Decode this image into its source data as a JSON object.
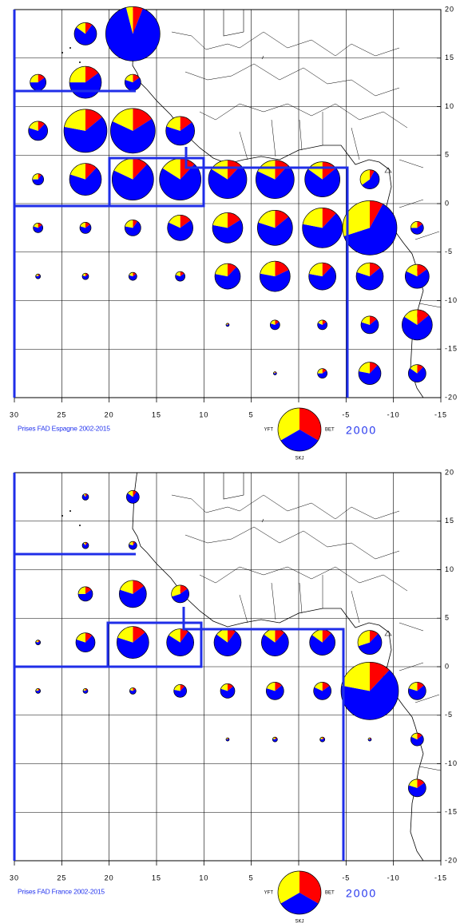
{
  "chart_data": [
    {
      "type": "pie-map",
      "title": "Prises FAD Espagne 2002-2015",
      "legend_size": 2000,
      "xlim": [
        30,
        -15
      ],
      "ylim": [
        -20,
        20
      ],
      "xticks": [
        30,
        25,
        20,
        15,
        10,
        5,
        0,
        -5,
        -10,
        -15
      ],
      "yticks": [
        20,
        15,
        10,
        5,
        0,
        -5,
        -10,
        -15,
        -20
      ],
      "series": [
        {
          "name": "YFT",
          "color": "#ffff00"
        },
        {
          "name": "BET",
          "color": "#ff0000"
        },
        {
          "name": "SKJ",
          "color": "#0000ff"
        }
      ],
      "pies": [
        {
          "lon": 22.5,
          "lat": 17.5,
          "size": 537,
          "values": [
            15,
            10,
            75
          ]
        },
        {
          "lon": 17.5,
          "lat": 17.5,
          "size": 3167,
          "values": [
            4,
            6,
            90
          ]
        },
        {
          "lon": 27.5,
          "lat": 12.5,
          "size": 274,
          "values": [
            25,
            15,
            60
          ]
        },
        {
          "lon": 22.5,
          "lat": 12.5,
          "size": 1096,
          "values": [
            25,
            15,
            60
          ]
        },
        {
          "lon": 17.5,
          "lat": 12.5,
          "size": 274,
          "values": [
            20,
            15,
            65
          ]
        },
        {
          "lon": 27.5,
          "lat": 7.5,
          "size": 395,
          "values": [
            20,
            12,
            68
          ]
        },
        {
          "lon": 22.5,
          "lat": 7.5,
          "size": 1997,
          "values": [
            22,
            14,
            64
          ]
        },
        {
          "lon": 17.5,
          "lat": 7.5,
          "size": 2148,
          "values": [
            18,
            16,
            66
          ]
        },
        {
          "lon": 12.5,
          "lat": 7.5,
          "size": 888,
          "values": [
            20,
            15,
            65
          ]
        },
        {
          "lon": 27.5,
          "lat": 2.5,
          "size": 134,
          "values": [
            25,
            10,
            65
          ]
        },
        {
          "lon": 22.5,
          "lat": 2.5,
          "size": 1096,
          "values": [
            20,
            12,
            68
          ]
        },
        {
          "lon": 17.5,
          "lat": 2.5,
          "size": 1852,
          "values": [
            18,
            12,
            70
          ]
        },
        {
          "lon": 12.5,
          "lat": 2.5,
          "size": 1852,
          "values": [
            16,
            12,
            72
          ]
        },
        {
          "lon": 7.5,
          "lat": 2.5,
          "size": 1578,
          "values": [
            16,
            12,
            72
          ]
        },
        {
          "lon": 2.5,
          "lat": 2.5,
          "size": 1578,
          "values": [
            18,
            12,
            70
          ]
        },
        {
          "lon": -2.5,
          "lat": 2.5,
          "size": 1326,
          "values": [
            15,
            14,
            71
          ]
        },
        {
          "lon": -7.5,
          "lat": 2.5,
          "size": 395,
          "values": [
            35,
            8,
            57
          ]
        },
        {
          "lon": 27.5,
          "lat": -2.5,
          "size": 99,
          "values": [
            20,
            15,
            65
          ]
        },
        {
          "lon": 22.5,
          "lat": -2.5,
          "size": 134,
          "values": [
            20,
            15,
            65
          ]
        },
        {
          "lon": 17.5,
          "lat": -2.5,
          "size": 274,
          "values": [
            22,
            10,
            68
          ]
        },
        {
          "lon": 12.5,
          "lat": -2.5,
          "size": 701,
          "values": [
            18,
            15,
            67
          ]
        },
        {
          "lon": 7.5,
          "lat": -2.5,
          "size": 989,
          "values": [
            22,
            16,
            62
          ]
        },
        {
          "lon": 2.5,
          "lat": -2.5,
          "size": 1326,
          "values": [
            20,
            14,
            66
          ]
        },
        {
          "lon": -2.5,
          "lat": -2.5,
          "size": 1713,
          "values": [
            22,
            12,
            66
          ]
        },
        {
          "lon": -7.5,
          "lat": -2.5,
          "size": 3167,
          "values": [
            30,
            8,
            62
          ]
        },
        {
          "lon": -12.5,
          "lat": -2.5,
          "size": 175,
          "values": [
            25,
            15,
            60
          ]
        },
        {
          "lon": 27.5,
          "lat": -7.5,
          "size": 25,
          "values": [
            20,
            15,
            65
          ]
        },
        {
          "lon": 22.5,
          "lat": -7.5,
          "size": 44,
          "values": [
            20,
            15,
            65
          ]
        },
        {
          "lon": 17.5,
          "lat": -7.5,
          "size": 69,
          "values": [
            20,
            15,
            65
          ]
        },
        {
          "lon": 12.5,
          "lat": -7.5,
          "size": 99,
          "values": [
            20,
            15,
            65
          ]
        },
        {
          "lon": 7.5,
          "lat": -7.5,
          "size": 701,
          "values": [
            22,
            12,
            66
          ]
        },
        {
          "lon": 2.5,
          "lat": -7.5,
          "size": 989,
          "values": [
            22,
            18,
            60
          ]
        },
        {
          "lon": -2.5,
          "lat": -7.5,
          "size": 792,
          "values": [
            22,
            12,
            66
          ]
        },
        {
          "lon": -7.5,
          "lat": -7.5,
          "size": 792,
          "values": [
            20,
            14,
            66
          ]
        },
        {
          "lon": -12.5,
          "lat": -7.5,
          "size": 617,
          "values": [
            18,
            15,
            67
          ]
        },
        {
          "lon": 7.5,
          "lat": -12.5,
          "size": 11,
          "values": [
            20,
            15,
            65
          ]
        },
        {
          "lon": 2.5,
          "lat": -12.5,
          "size": 99,
          "values": [
            20,
            15,
            65
          ]
        },
        {
          "lon": -2.5,
          "lat": -12.5,
          "size": 99,
          "values": [
            18,
            15,
            67
          ]
        },
        {
          "lon": -7.5,
          "lat": -12.5,
          "size": 332,
          "values": [
            20,
            14,
            66
          ]
        },
        {
          "lon": -12.5,
          "lat": -12.5,
          "size": 989,
          "values": [
            16,
            14,
            70
          ]
        },
        {
          "lon": 2.5,
          "lat": -17.5,
          "size": 11,
          "values": [
            20,
            15,
            65
          ]
        },
        {
          "lon": -2.5,
          "lat": -17.5,
          "size": 99,
          "values": [
            25,
            15,
            60
          ]
        },
        {
          "lon": -7.5,
          "lat": -17.5,
          "size": 537,
          "values": [
            22,
            12,
            66
          ]
        },
        {
          "lon": -12.5,
          "lat": -17.5,
          "size": 332,
          "values": [
            15,
            12,
            73
          ]
        }
      ]
    },
    {
      "type": "pie-map",
      "title": "Prises FAD France 2002-2015",
      "legend_size": 2000,
      "xlim": [
        30,
        -15
      ],
      "ylim": [
        -20,
        20
      ],
      "xticks": [
        30,
        25,
        20,
        15,
        10,
        5,
        0,
        -5,
        -10,
        -15
      ],
      "yticks": [
        20,
        15,
        10,
        5,
        0,
        -5,
        -10,
        -15,
        -20
      ],
      "series": [
        {
          "name": "YFT",
          "color": "#ffff00"
        },
        {
          "name": "BET",
          "color": "#ff0000"
        },
        {
          "name": "SKJ",
          "color": "#0000ff"
        }
      ],
      "pies": [
        {
          "lon": 22.5,
          "lat": 17.5,
          "size": 44,
          "values": [
            10,
            10,
            80
          ]
        },
        {
          "lon": 17.5,
          "lat": 17.5,
          "size": 175,
          "values": [
            15,
            10,
            75
          ]
        },
        {
          "lon": 22.5,
          "lat": 12.5,
          "size": 44,
          "values": [
            10,
            10,
            80
          ]
        },
        {
          "lon": 17.5,
          "lat": 12.5,
          "size": 69,
          "values": [
            20,
            10,
            70
          ]
        },
        {
          "lon": 22.5,
          "lat": 7.5,
          "size": 222,
          "values": [
            25,
            15,
            60
          ]
        },
        {
          "lon": 17.5,
          "lat": 7.5,
          "size": 792,
          "values": [
            20,
            15,
            65
          ]
        },
        {
          "lon": 12.5,
          "lat": 7.5,
          "size": 332,
          "values": [
            30,
            15,
            55
          ]
        },
        {
          "lon": 27.5,
          "lat": 2.5,
          "size": 25,
          "values": [
            20,
            15,
            65
          ]
        },
        {
          "lon": 22.5,
          "lat": 2.5,
          "size": 395,
          "values": [
            20,
            12,
            68
          ]
        },
        {
          "lon": 17.5,
          "lat": 2.5,
          "size": 1096,
          "values": [
            20,
            14,
            66
          ]
        },
        {
          "lon": 12.5,
          "lat": 2.5,
          "size": 792,
          "values": [
            16,
            10,
            74
          ]
        },
        {
          "lon": 7.5,
          "lat": 2.5,
          "size": 792,
          "values": [
            15,
            10,
            75
          ]
        },
        {
          "lon": 2.5,
          "lat": 2.5,
          "size": 792,
          "values": [
            15,
            12,
            73
          ]
        },
        {
          "lon": -2.5,
          "lat": 2.5,
          "size": 701,
          "values": [
            15,
            12,
            73
          ]
        },
        {
          "lon": -7.5,
          "lat": 2.5,
          "size": 617,
          "values": [
            30,
            12,
            58
          ]
        },
        {
          "lon": 27.5,
          "lat": -2.5,
          "size": 25,
          "values": [
            20,
            15,
            65
          ]
        },
        {
          "lon": 22.5,
          "lat": -2.5,
          "size": 25,
          "values": [
            20,
            15,
            65
          ]
        },
        {
          "lon": 17.5,
          "lat": -2.5,
          "size": 44,
          "values": [
            20,
            15,
            65
          ]
        },
        {
          "lon": 12.5,
          "lat": -2.5,
          "size": 175,
          "values": [
            22,
            12,
            66
          ]
        },
        {
          "lon": 7.5,
          "lat": -2.5,
          "size": 222,
          "values": [
            20,
            14,
            66
          ]
        },
        {
          "lon": 2.5,
          "lat": -2.5,
          "size": 332,
          "values": [
            20,
            14,
            66
          ]
        },
        {
          "lon": -2.5,
          "lat": -2.5,
          "size": 332,
          "values": [
            18,
            15,
            67
          ]
        },
        {
          "lon": -7.5,
          "lat": -2.5,
          "size": 3551,
          "values": [
            22,
            12,
            66
          ]
        },
        {
          "lon": -12.5,
          "lat": -2.5,
          "size": 332,
          "values": [
            20,
            14,
            66
          ]
        },
        {
          "lon": 7.5,
          "lat": -7.5,
          "size": 11,
          "values": [
            20,
            15,
            65
          ]
        },
        {
          "lon": 2.5,
          "lat": -7.5,
          "size": 25,
          "values": [
            20,
            15,
            65
          ]
        },
        {
          "lon": -2.5,
          "lat": -7.5,
          "size": 25,
          "values": [
            20,
            15,
            65
          ]
        },
        {
          "lon": -7.5,
          "lat": -7.5,
          "size": 11,
          "values": [
            20,
            15,
            65
          ]
        },
        {
          "lon": -12.5,
          "lat": -7.5,
          "size": 175,
          "values": [
            18,
            14,
            68
          ]
        },
        {
          "lon": -12.5,
          "lat": -12.5,
          "size": 332,
          "values": [
            20,
            15,
            65
          ]
        }
      ]
    }
  ]
}
